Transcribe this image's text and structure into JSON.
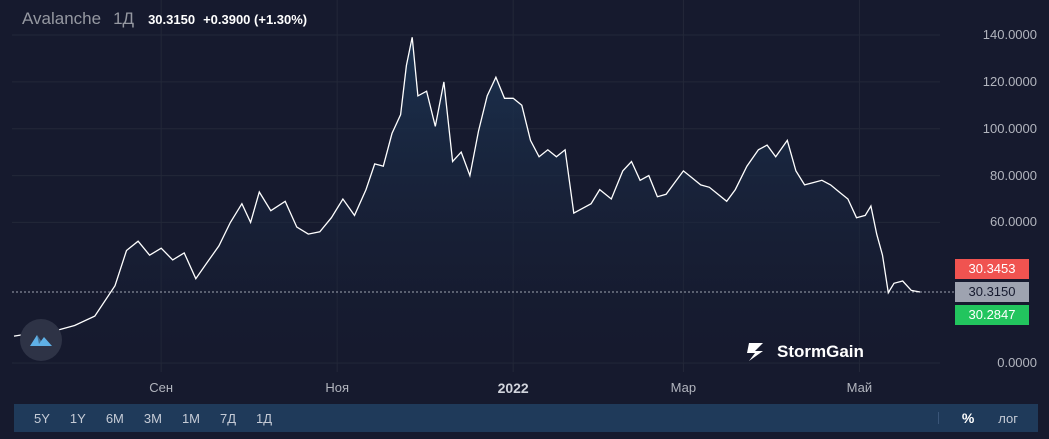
{
  "header": {
    "symbol": "Avalanche",
    "timeframe": "1Д",
    "price": "30.3150",
    "change": "+0.3900 (+1.30%)"
  },
  "price_tags": {
    "high": "30.3453",
    "current": "30.3150",
    "low": "30.2847"
  },
  "brand": {
    "name": "StormGain"
  },
  "range_buttons": [
    "5Y",
    "1Y",
    "6M",
    "3M",
    "1M",
    "7Д",
    "1Д"
  ],
  "scale_buttons": {
    "percent": "%",
    "log": "лог"
  },
  "colors": {
    "background": "#161a2e",
    "line": "#ffffff",
    "area_top": "#1c3554",
    "tag_high": "#f05350",
    "tag_low": "#22c55e",
    "tag_current": "#9ea3b0",
    "bottom_bar": "#1f3a5a"
  },
  "chart_data": {
    "type": "area",
    "y_axis": {
      "ticks": [
        "140.0000",
        "120.0000",
        "100.0000",
        "80.0000",
        "60.0000",
        "0.0000"
      ],
      "ylim": [
        0,
        140
      ],
      "position": "right"
    },
    "x_axis": {
      "ticks": [
        {
          "label": "Сен",
          "date": "2021-09-01",
          "bold": false
        },
        {
          "label": "Ноя",
          "date": "2021-11-01",
          "bold": false
        },
        {
          "label": "2022",
          "date": "2022-01-01",
          "bold": true
        },
        {
          "label": "Мар",
          "date": "2022-03-01",
          "bold": false
        },
        {
          "label": "Май",
          "date": "2022-05-01",
          "bold": false
        }
      ]
    },
    "grid": true,
    "current_price_line": 30.315,
    "series": [
      {
        "points": [
          [
            "2021-07-12",
            11.5
          ],
          [
            "2021-07-20",
            13
          ],
          [
            "2021-07-27",
            14
          ],
          [
            "2021-08-02",
            16
          ],
          [
            "2021-08-09",
            20
          ],
          [
            "2021-08-16",
            33
          ],
          [
            "2021-08-20",
            48
          ],
          [
            "2021-08-24",
            52
          ],
          [
            "2021-08-28",
            46
          ],
          [
            "2021-09-01",
            49
          ],
          [
            "2021-09-05",
            44
          ],
          [
            "2021-09-09",
            47
          ],
          [
            "2021-09-13",
            36
          ],
          [
            "2021-09-17",
            43
          ],
          [
            "2021-09-21",
            50
          ],
          [
            "2021-09-25",
            60
          ],
          [
            "2021-09-29",
            68
          ],
          [
            "2021-10-02",
            60
          ],
          [
            "2021-10-05",
            73
          ],
          [
            "2021-10-09",
            65
          ],
          [
            "2021-10-14",
            69
          ],
          [
            "2021-10-18",
            58
          ],
          [
            "2021-10-22",
            55
          ],
          [
            "2021-10-26",
            56
          ],
          [
            "2021-10-30",
            62
          ],
          [
            "2021-11-03",
            70
          ],
          [
            "2021-11-07",
            63
          ],
          [
            "2021-11-11",
            74
          ],
          [
            "2021-11-14",
            85
          ],
          [
            "2021-11-17",
            84
          ],
          [
            "2021-11-20",
            98
          ],
          [
            "2021-11-23",
            106
          ],
          [
            "2021-11-25",
            127
          ],
          [
            "2021-11-27",
            139
          ],
          [
            "2021-11-29",
            114
          ],
          [
            "2021-12-02",
            116
          ],
          [
            "2021-12-05",
            101
          ],
          [
            "2021-12-08",
            120
          ],
          [
            "2021-12-11",
            86
          ],
          [
            "2021-12-14",
            90
          ],
          [
            "2021-12-17",
            80
          ],
          [
            "2021-12-20",
            99
          ],
          [
            "2021-12-23",
            114
          ],
          [
            "2021-12-26",
            122
          ],
          [
            "2021-12-29",
            113
          ],
          [
            "2022-01-01",
            113
          ],
          [
            "2022-01-04",
            110
          ],
          [
            "2022-01-07",
            95
          ],
          [
            "2022-01-10",
            88
          ],
          [
            "2022-01-13",
            91
          ],
          [
            "2022-01-16",
            88
          ],
          [
            "2022-01-19",
            91
          ],
          [
            "2022-01-22",
            64
          ],
          [
            "2022-01-25",
            66
          ],
          [
            "2022-01-28",
            68
          ],
          [
            "2022-01-31",
            74
          ],
          [
            "2022-02-04",
            70
          ],
          [
            "2022-02-08",
            82
          ],
          [
            "2022-02-11",
            86
          ],
          [
            "2022-02-14",
            78
          ],
          [
            "2022-02-17",
            80
          ],
          [
            "2022-02-20",
            71
          ],
          [
            "2022-02-23",
            72
          ],
          [
            "2022-02-26",
            77
          ],
          [
            "2022-03-01",
            82
          ],
          [
            "2022-03-04",
            79
          ],
          [
            "2022-03-07",
            76
          ],
          [
            "2022-03-10",
            75
          ],
          [
            "2022-03-13",
            72
          ],
          [
            "2022-03-16",
            69
          ],
          [
            "2022-03-19",
            74
          ],
          [
            "2022-03-23",
            84
          ],
          [
            "2022-03-27",
            91
          ],
          [
            "2022-03-30",
            93
          ],
          [
            "2022-04-02",
            88
          ],
          [
            "2022-04-06",
            95
          ],
          [
            "2022-04-09",
            82
          ],
          [
            "2022-04-12",
            76
          ],
          [
            "2022-04-15",
            77
          ],
          [
            "2022-04-18",
            78
          ],
          [
            "2022-04-21",
            76
          ],
          [
            "2022-04-24",
            73
          ],
          [
            "2022-04-27",
            70
          ],
          [
            "2022-04-30",
            62
          ],
          [
            "2022-05-03",
            63
          ],
          [
            "2022-05-05",
            67
          ],
          [
            "2022-05-07",
            55
          ],
          [
            "2022-05-09",
            46
          ],
          [
            "2022-05-11",
            30
          ],
          [
            "2022-05-13",
            34
          ],
          [
            "2022-05-16",
            35
          ],
          [
            "2022-05-19",
            31
          ],
          [
            "2022-05-22",
            30.3
          ]
        ]
      }
    ]
  }
}
